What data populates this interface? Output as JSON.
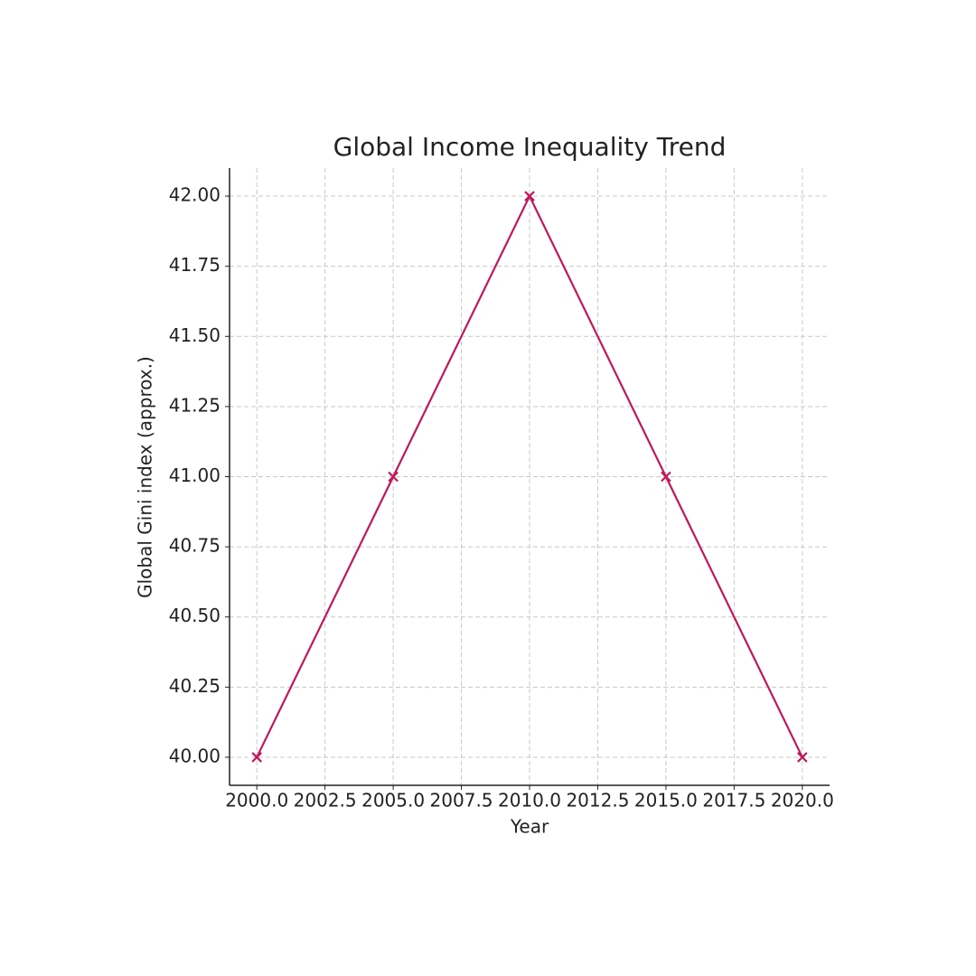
{
  "chart_data": {
    "type": "line",
    "title": "Global Income Inequality Trend",
    "x_label": "Year",
    "y_label": "Global Gini index (approx.)",
    "x": [
      2000,
      2005,
      2010,
      2015,
      2020
    ],
    "series": [
      {
        "color": "#c2185b",
        "marker": "x",
        "values": [
          40,
          41,
          42,
          41,
          40
        ]
      }
    ],
    "xlim": [
      1999,
      2021
    ],
    "xticks": [
      {
        "value": 2000,
        "label": "2000.0"
      },
      {
        "value": 2002.5,
        "label": "2002.5"
      },
      {
        "value": 2005,
        "label": "2005.0"
      },
      {
        "value": 2007.5,
        "label": "2007.5"
      },
      {
        "value": 2010,
        "label": "2010.0"
      },
      {
        "value": 2012.5,
        "label": "2012.5"
      },
      {
        "value": 2015,
        "label": "2015.0"
      },
      {
        "value": 2017.5,
        "label": "2017.5"
      },
      {
        "value": 2020,
        "label": "2020.0"
      }
    ],
    "ylim": [
      39.9,
      42.1
    ],
    "yticks": [
      {
        "value": 40,
        "label": "40.00"
      },
      {
        "value": 40.25,
        "label": "40.25"
      },
      {
        "value": 40.5,
        "label": "40.50"
      },
      {
        "value": 40.75,
        "label": "40.75"
      },
      {
        "value": 41,
        "label": "41.00"
      },
      {
        "value": 41.25,
        "label": "41.25"
      },
      {
        "value": 41.5,
        "label": "41.50"
      },
      {
        "value": 41.75,
        "label": "41.75"
      },
      {
        "value": 42,
        "label": "42.00"
      }
    ],
    "grid": true
  }
}
